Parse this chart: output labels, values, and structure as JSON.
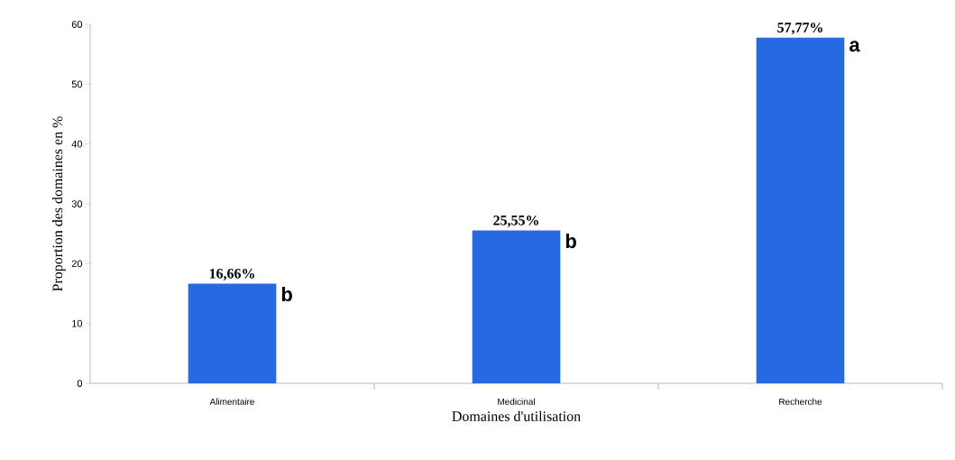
{
  "chart_data": {
    "type": "bar",
    "xlabel": "Domaines d'utilisation",
    "ylabel": "Proportion des domaines en %",
    "categories": [
      "Alimentaire",
      "Medicinal",
      "Recherche"
    ],
    "values": [
      16.66,
      25.55,
      57.77
    ],
    "value_labels": [
      "16,66%",
      "25,55%",
      "57,77%"
    ],
    "color": "#2769e0",
    "ylim": [
      0,
      60
    ],
    "yticks": [
      0,
      10,
      20,
      30,
      40,
      50,
      60
    ],
    "grid": false,
    "annotations": [
      {
        "text": "b",
        "x": "Alimentaire",
        "y": 16.66
      },
      {
        "text": "b",
        "x": "Medicinal",
        "y": 25.55
      },
      {
        "text": "a",
        "x": "Recherche",
        "y": 57.77
      }
    ]
  }
}
